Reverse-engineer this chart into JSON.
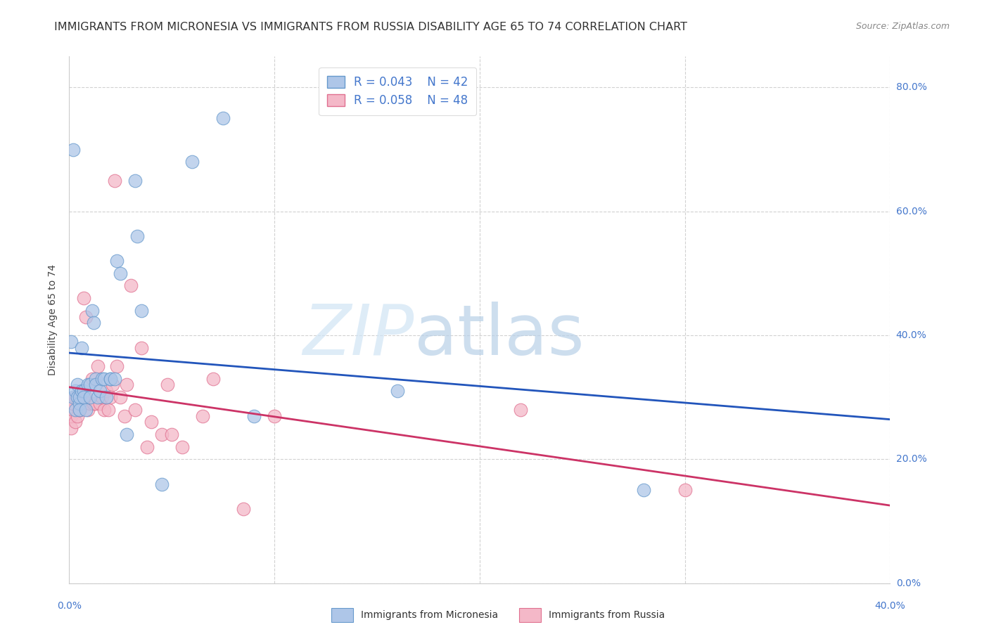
{
  "title": "IMMIGRANTS FROM MICRONESIA VS IMMIGRANTS FROM RUSSIA DISABILITY AGE 65 TO 74 CORRELATION CHART",
  "source": "Source: ZipAtlas.com",
  "ylabel_label": "Disability Age 65 to 74",
  "legend_blue_r": "R = 0.043",
  "legend_blue_n": "N = 42",
  "legend_pink_r": "R = 0.058",
  "legend_pink_n": "N = 48",
  "blue_color": "#aec6e8",
  "pink_color": "#f4b8c8",
  "blue_line_color": "#2255bb",
  "pink_line_color": "#cc3366",
  "watermark_zip": "ZIP",
  "watermark_atlas": "atlas",
  "blue_points_x": [
    0.001,
    0.002,
    0.003,
    0.003,
    0.004,
    0.004,
    0.005,
    0.005,
    0.005,
    0.006,
    0.006,
    0.007,
    0.007,
    0.008,
    0.009,
    0.01,
    0.01,
    0.011,
    0.012,
    0.013,
    0.013,
    0.014,
    0.015,
    0.016,
    0.017,
    0.018,
    0.02,
    0.02,
    0.022,
    0.023,
    0.025,
    0.028,
    0.032,
    0.033,
    0.035,
    0.045,
    0.06,
    0.075,
    0.09,
    0.16,
    0.28,
    0.002
  ],
  "blue_points_y": [
    0.39,
    0.3,
    0.31,
    0.28,
    0.32,
    0.3,
    0.29,
    0.3,
    0.28,
    0.31,
    0.38,
    0.31,
    0.3,
    0.28,
    0.32,
    0.3,
    0.32,
    0.44,
    0.42,
    0.33,
    0.32,
    0.3,
    0.31,
    0.33,
    0.33,
    0.3,
    0.33,
    0.33,
    0.33,
    0.52,
    0.5,
    0.24,
    0.65,
    0.56,
    0.44,
    0.16,
    0.68,
    0.75,
    0.27,
    0.31,
    0.15,
    0.7
  ],
  "pink_points_x": [
    0.001,
    0.001,
    0.002,
    0.002,
    0.003,
    0.003,
    0.004,
    0.004,
    0.005,
    0.005,
    0.006,
    0.006,
    0.007,
    0.008,
    0.008,
    0.009,
    0.01,
    0.011,
    0.012,
    0.013,
    0.014,
    0.015,
    0.016,
    0.017,
    0.018,
    0.019,
    0.02,
    0.021,
    0.022,
    0.023,
    0.025,
    0.027,
    0.028,
    0.03,
    0.032,
    0.035,
    0.038,
    0.04,
    0.045,
    0.048,
    0.05,
    0.055,
    0.065,
    0.07,
    0.085,
    0.1,
    0.22,
    0.3
  ],
  "pink_points_y": [
    0.25,
    0.27,
    0.28,
    0.29,
    0.26,
    0.3,
    0.27,
    0.3,
    0.28,
    0.28,
    0.3,
    0.29,
    0.46,
    0.3,
    0.43,
    0.28,
    0.29,
    0.33,
    0.29,
    0.29,
    0.35,
    0.29,
    0.3,
    0.28,
    0.31,
    0.28,
    0.3,
    0.32,
    0.65,
    0.35,
    0.3,
    0.27,
    0.32,
    0.48,
    0.28,
    0.38,
    0.22,
    0.26,
    0.24,
    0.32,
    0.24,
    0.22,
    0.27,
    0.33,
    0.12,
    0.27,
    0.28,
    0.15
  ],
  "xlim": [
    0.0,
    0.4
  ],
  "ylim": [
    0.0,
    0.85
  ],
  "xtick_positions": [
    0.0,
    0.1,
    0.2,
    0.3,
    0.4
  ],
  "ytick_positions": [
    0.0,
    0.2,
    0.4,
    0.6,
    0.8
  ],
  "ytick_labels": [
    "0.0%",
    "20.0%",
    "40.0%",
    "60.0%",
    "80.0%"
  ],
  "grid_color": "#cccccc",
  "background_color": "#ffffff",
  "title_fontsize": 11.5,
  "axis_label_fontsize": 10,
  "legend_fontsize": 12,
  "tick_color": "#4477cc",
  "source_fontsize": 9
}
